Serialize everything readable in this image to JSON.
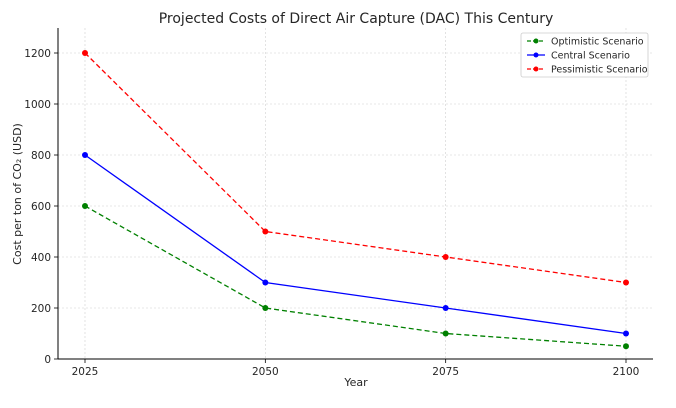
{
  "chart_data": {
    "type": "line",
    "title": "Projected Costs of Direct Air Capture (DAC) This Century",
    "xlabel": "Year",
    "ylabel": "Cost per ton of CO₂ (USD)",
    "x": [
      2025,
      2050,
      2075,
      2100
    ],
    "xticks": [
      "2025",
      "2050",
      "2075",
      "2100"
    ],
    "yticks": [
      "0",
      "200",
      "400",
      "600",
      "800",
      "1000",
      "1200"
    ],
    "ylim": [
      0,
      1300
    ],
    "grid": true,
    "legend_position": "top-right",
    "series": [
      {
        "name": "Optimistic Scenario",
        "values": [
          600,
          200,
          100,
          50
        ],
        "color": "#008000",
        "dash": "dashed"
      },
      {
        "name": "Central Scenario",
        "values": [
          800,
          300,
          200,
          100
        ],
        "color": "#0000ff",
        "dash": "solid"
      },
      {
        "name": "Pessimistic Scenario",
        "values": [
          1200,
          500,
          400,
          300
        ],
        "color": "#ff0000",
        "dash": "dashed"
      }
    ]
  }
}
